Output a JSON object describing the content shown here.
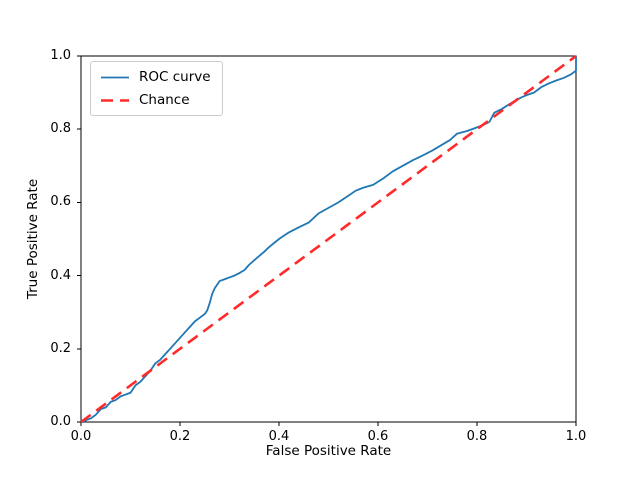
{
  "figure": {
    "background": "#ffffff",
    "spine_color": "#000000"
  },
  "chart_data": {
    "type": "line",
    "title": "",
    "xlabel": "False Positive Rate",
    "ylabel": "True Positive Rate",
    "xlim": [
      0.0,
      1.0
    ],
    "ylim": [
      0.0,
      1.0
    ],
    "xtick_labels": [
      "0.0",
      "0.2",
      "0.4",
      "0.6",
      "0.8",
      "1.0"
    ],
    "ytick_labels": [
      "0.0",
      "0.2",
      "0.4",
      "0.6",
      "0.8",
      "1.0"
    ],
    "grid": false,
    "legend": {
      "position": "upper-left",
      "entries": [
        "ROC curve",
        "Chance"
      ]
    },
    "series": [
      {
        "name": "ROC curve",
        "color": "#1f77b4",
        "line_style": "solid",
        "line_width": 1.8,
        "x": [
          0,
          0.005,
          0.01,
          0.02,
          0.03,
          0.04,
          0.05,
          0.06,
          0.07,
          0.08,
          0.09,
          0.1,
          0.105,
          0.11,
          0.12,
          0.13,
          0.14,
          0.15,
          0.16,
          0.17,
          0.18,
          0.19,
          0.2,
          0.21,
          0.22,
          0.23,
          0.24,
          0.25,
          0.255,
          0.26,
          0.265,
          0.27,
          0.275,
          0.28,
          0.29,
          0.3,
          0.31,
          0.32,
          0.33,
          0.34,
          0.355,
          0.37,
          0.38,
          0.4,
          0.42,
          0.44,
          0.46,
          0.48,
          0.5,
          0.52,
          0.54,
          0.555,
          0.57,
          0.59,
          0.61,
          0.63,
          0.65,
          0.67,
          0.69,
          0.71,
          0.73,
          0.745,
          0.76,
          0.78,
          0.8,
          0.815,
          0.825,
          0.835,
          0.85,
          0.865,
          0.88,
          0.89,
          0.9,
          0.915,
          0.93,
          0.945,
          0.96,
          0.975,
          0.99,
          1.0,
          1.0
        ],
        "y": [
          0,
          0.0,
          0.005,
          0.01,
          0.02,
          0.035,
          0.04,
          0.055,
          0.06,
          0.07,
          0.075,
          0.08,
          0.09,
          0.1,
          0.11,
          0.125,
          0.14,
          0.16,
          0.17,
          0.185,
          0.2,
          0.215,
          0.23,
          0.245,
          0.26,
          0.275,
          0.285,
          0.295,
          0.305,
          0.325,
          0.35,
          0.365,
          0.375,
          0.385,
          0.39,
          0.395,
          0.4,
          0.407,
          0.415,
          0.43,
          0.448,
          0.465,
          0.478,
          0.5,
          0.518,
          0.532,
          0.545,
          0.57,
          0.585,
          0.6,
          0.618,
          0.632,
          0.64,
          0.648,
          0.665,
          0.685,
          0.7,
          0.715,
          0.728,
          0.742,
          0.758,
          0.77,
          0.788,
          0.795,
          0.805,
          0.813,
          0.82,
          0.845,
          0.855,
          0.868,
          0.88,
          0.887,
          0.893,
          0.9,
          0.915,
          0.925,
          0.933,
          0.94,
          0.95,
          0.96,
          1.0
        ]
      },
      {
        "name": "Chance",
        "color": "#ff2b2b",
        "line_style": "dashed",
        "line_width": 2.6,
        "x": [
          0,
          1
        ],
        "y": [
          0,
          1
        ]
      }
    ]
  }
}
